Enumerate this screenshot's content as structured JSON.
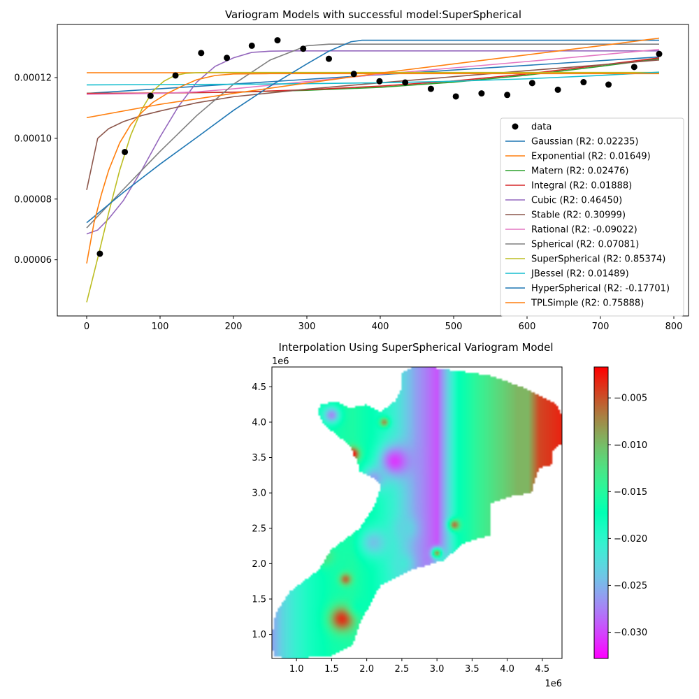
{
  "colors": {
    "data_points": "#000000",
    "tab_blue": "#1f77b4",
    "tab_orange": "#ff7f0e",
    "tab_green": "#2ca02c",
    "tab_red": "#d62728",
    "tab_purple": "#9467bd",
    "tab_brown": "#8c564b",
    "tab_pink": "#e377c2",
    "tab_gray": "#7f7f7f",
    "tab_olive": "#bcbd22",
    "tab_cyan": "#17becf",
    "colormap": "rainbow"
  },
  "chart_data": [
    {
      "type": "scatter",
      "title": "Variogram Models with successful model:SuperSpherical",
      "xlabel": "",
      "ylabel": "",
      "xlim": [
        -40,
        820
      ],
      "ylim": [
        4.15e-05,
        0.0001375
      ],
      "xticks": [
        0,
        100,
        200,
        300,
        400,
        500,
        600,
        700,
        800
      ],
      "xtick_labels": [
        "0",
        "100",
        "200",
        "300",
        "400",
        "500",
        "600",
        "700",
        "800"
      ],
      "yticks": [
        6e-05,
        8e-05,
        0.0001,
        0.00012
      ],
      "ytick_labels": [
        "0.00006",
        "0.00008",
        "0.00010",
        "0.00012"
      ],
      "grid": false,
      "legend_position": "lower-right",
      "points": {
        "name": "data",
        "x": [
          18,
          52,
          87,
          121,
          156,
          191,
          225,
          260,
          295,
          330,
          364,
          399,
          434,
          469,
          503,
          538,
          573,
          607,
          642,
          677,
          711,
          746,
          780
        ],
        "y": [
          6.2e-05,
          9.55e-05,
          0.000114,
          0.0001207,
          0.0001281,
          0.0001265,
          0.0001305,
          0.0001323,
          0.0001295,
          0.0001262,
          0.0001212,
          0.0001188,
          0.0001184,
          0.0001163,
          0.0001138,
          0.0001148,
          0.0001143,
          0.0001182,
          0.000116,
          0.0001185,
          0.0001177,
          0.0001235,
          0.0001278
        ]
      },
      "series": [
        {
          "name": "Gaussian (R2: 0.02235)",
          "color": "#1f77b4",
          "x": [
            0,
            780
          ],
          "y": [
            0.0001148,
            0.0001268
          ]
        },
        {
          "name": "Exponential (R2: 0.01649)",
          "color": "#ff7f0e",
          "x": [
            0,
            780
          ],
          "y": [
            0.0001216,
            0.0001216
          ]
        },
        {
          "name": "Matern (R2: 0.02476)",
          "color": "#2ca02c",
          "x": [
            0,
            100,
            200,
            300,
            400,
            500,
            600,
            700,
            780
          ],
          "y": [
            0.0001148,
            0.0001149,
            0.0001152,
            0.0001158,
            0.0001168,
            0.0001185,
            0.0001208,
            0.0001237,
            0.0001262
          ]
        },
        {
          "name": "Integral (R2: 0.01888)",
          "color": "#d62728",
          "x": [
            0,
            100,
            200,
            300,
            400,
            500,
            600,
            700,
            780
          ],
          "y": [
            0.0001148,
            0.0001149,
            0.0001152,
            0.000116,
            0.0001172,
            0.0001189,
            0.0001212,
            0.0001241,
            0.0001265
          ]
        },
        {
          "name": "Cubic (R2: 0.46450)",
          "color": "#9467bd",
          "x": [
            0,
            15,
            30,
            50,
            75,
            100,
            125,
            150,
            175,
            200,
            225,
            250,
            275,
            300,
            780
          ],
          "y": [
            6.85e-05,
            6.98e-05,
            7.35e-05,
            7.95e-05,
            8.95e-05,
            0.0001005,
            0.0001105,
            0.0001185,
            0.0001237,
            0.0001265,
            0.0001283,
            0.0001287,
            0.0001288,
            0.0001288,
            0.0001288
          ]
        },
        {
          "name": "Stable (R2: 0.30999)",
          "color": "#8c564b",
          "x": [
            0,
            15,
            30,
            50,
            75,
            100,
            150,
            200,
            300,
            400,
            500,
            600,
            700,
            780
          ],
          "y": [
            8.3e-05,
            0.0001,
            0.0001032,
            0.0001055,
            0.0001075,
            0.000109,
            0.0001117,
            0.0001137,
            0.0001162,
            0.0001183,
            0.0001203,
            0.0001223,
            0.0001242,
            0.0001258
          ]
        },
        {
          "name": "Rational (R2: -0.09022)",
          "color": "#e377c2",
          "x": [
            0,
            100,
            150,
            200,
            250,
            300,
            350,
            400,
            500,
            600,
            700,
            780
          ],
          "y": [
            0.0001145,
            0.0001148,
            0.0001153,
            0.0001163,
            0.0001175,
            0.0001187,
            0.0001199,
            0.0001211,
            0.0001232,
            0.0001253,
            0.0001275,
            0.0001293
          ]
        },
        {
          "name": "Spherical (R2: 0.07081)",
          "color": "#7f7f7f",
          "x": [
            0,
            50,
            100,
            150,
            200,
            250,
            300,
            330,
            780
          ],
          "y": [
            7.05e-05,
            8.32e-05,
            9.57e-05,
            0.0001075,
            0.0001178,
            0.0001258,
            0.0001305,
            0.000131,
            0.000131
          ]
        },
        {
          "name": "SuperSpherical (R2: 0.85374)",
          "color": "#bcbd22",
          "x": [
            0,
            15,
            30,
            45,
            60,
            75,
            90,
            105,
            120,
            135,
            150,
            165,
            180,
            780
          ],
          "y": [
            4.6e-05,
            6.05e-05,
            7.55e-05,
            8.95e-05,
            0.000101,
            0.0001095,
            0.0001155,
            0.0001188,
            0.0001207,
            0.0001214,
            0.0001216,
            0.0001217,
            0.0001217,
            0.0001217
          ]
        },
        {
          "name": "JBessel (R2: 0.01489)",
          "color": "#17becf",
          "x": [
            0,
            100,
            200,
            300,
            400,
            500,
            600,
            700,
            780
          ],
          "y": [
            0.0001176,
            0.0001177,
            0.0001178,
            0.000118,
            0.0001183,
            0.0001188,
            0.0001196,
            0.0001207,
            0.0001218
          ]
        },
        {
          "name": "HyperSpherical (R2: -0.17701)",
          "color": "#1f77b4",
          "x": [
            0,
            50,
            100,
            150,
            200,
            250,
            300,
            330,
            360,
            375,
            780
          ],
          "y": [
            7.22e-05,
            8.22e-05,
            9.15e-05,
            0.0001003,
            0.0001092,
            0.0001172,
            0.0001245,
            0.0001287,
            0.0001318,
            0.0001323,
            0.0001323
          ]
        },
        {
          "name": "TPLSimple (R2: 0.75888)",
          "color": "#ff7f0e",
          "x": [
            0,
            10,
            20,
            30,
            45,
            60,
            75,
            90,
            110,
            130,
            150,
            175,
            200,
            250,
            300,
            350,
            400,
            450,
            500,
            550,
            600,
            650,
            700,
            780
          ],
          "y": [
            5.88e-05,
            7.22e-05,
            8.15e-05,
            8.95e-05,
            9.85e-05,
            0.0001045,
            0.0001085,
            0.0001118,
            0.0001148,
            0.0001172,
            0.0001193,
            0.0001207,
            0.0001212,
            0.0001213,
            0.0001213,
            0.0001213,
            0.0001213,
            0.0001213,
            0.0001213,
            0.0001213,
            0.0001213,
            0.0001213,
            0.0001213,
            0.0001213
          ]
        },
        {
          "name": "",
          "color": "#ff7f0e",
          "x": [
            0,
            100,
            200,
            300,
            400,
            500,
            600,
            700,
            780
          ],
          "y": [
            0.0001068,
            0.0001112,
            0.0001148,
            0.0001182,
            0.0001215,
            0.0001245,
            0.0001275,
            0.0001305,
            0.000133
          ]
        }
      ]
    },
    {
      "type": "heatmap",
      "title": "Interpolation Using SuperSpherical Variogram Model",
      "xlabel": "",
      "ylabel": "",
      "xlim": [
        650000,
        4780000
      ],
      "ylim": [
        660000,
        4780000
      ],
      "xticks": [
        1000000,
        1500000,
        2000000,
        2500000,
        3000000,
        3500000,
        4000000,
        4500000
      ],
      "xtick_labels": [
        "1.0",
        "1.5",
        "2.0",
        "2.5",
        "3.0",
        "3.5",
        "4.0",
        "4.5"
      ],
      "yticks": [
        1000000,
        1500000,
        2000000,
        2500000,
        3000000,
        3500000,
        4000000,
        4500000
      ],
      "ytick_labels": [
        "1.0",
        "1.5",
        "2.0",
        "2.5",
        "3.0",
        "3.5",
        "4.0",
        "4.5"
      ],
      "x_offset_label": "1e6",
      "y_offset_label": "1e6",
      "colormap": "rainbow",
      "colorbar": {
        "vmin": -0.0328,
        "vmax": -0.0017,
        "ticks": [
          -0.03,
          -0.025,
          -0.02,
          -0.015,
          -0.01,
          -0.005
        ],
        "tick_labels": [
          "−0.030",
          "−0.025",
          "−0.020",
          "−0.015",
          "−0.010",
          "−0.005"
        ]
      },
      "region_boundary": {
        "x": [
          2900000,
          3100000,
          3500000,
          3800000,
          4200000,
          4400000,
          4700000,
          4780000,
          4780000,
          4650000,
          4650000,
          4450000,
          4400000,
          4350000,
          4050000,
          3750000,
          3750000,
          3400000,
          3100000,
          2600000,
          2200000,
          1900000,
          1800000,
          1500000,
          1000000,
          700000,
          650000,
          650000,
          700000,
          900000,
          1300000,
          1500000,
          1900000,
          2100000,
          2200000,
          2100000,
          1900000,
          1850000,
          1800000,
          1780000,
          1600000,
          1400000,
          1300000,
          1350000,
          1550000,
          1750000,
          2000000,
          2200000,
          2400000,
          2500000,
          2500000,
          2650000
        ],
        "y": [
          4780000,
          4750000,
          4700000,
          4650000,
          4500000,
          4400000,
          4250000,
          4100000,
          3700000,
          3600000,
          3400000,
          3350000,
          3200000,
          3000000,
          2950000,
          2850000,
          2400000,
          2300000,
          2050000,
          1900000,
          1700000,
          1150000,
          850000,
          700000,
          660000,
          680000,
          800000,
          1000000,
          1300000,
          1600000,
          1900000,
          2200000,
          2500000,
          2800000,
          3100000,
          3200000,
          3300000,
          3500000,
          3550000,
          3650000,
          3800000,
          3950000,
          4150000,
          4250000,
          4300000,
          4200000,
          4250000,
          4150000,
          4300000,
          4500000,
          4700000,
          4780000
        ]
      },
      "x_bands": {
        "x": [
          650000,
          800000,
          1000000,
          1200000,
          1500000,
          1800000,
          2100000,
          2400000,
          2700000,
          3000000,
          3300000,
          3600000,
          3900000,
          4150000,
          4300000,
          4450000,
          4780000
        ],
        "values": [
          -0.026,
          -0.023,
          -0.0205,
          -0.0185,
          -0.0165,
          -0.0155,
          -0.0175,
          -0.021,
          -0.026,
          -0.0295,
          -0.0175,
          -0.014,
          -0.0115,
          -0.0095,
          -0.0095,
          -0.0045,
          -0.003
        ]
      },
      "blobs": [
        {
          "x": 1650000,
          "y": 1220000,
          "r": 230000,
          "value": -0.0035
        },
        {
          "x": 1800000,
          "y": 3550000,
          "r": 120000,
          "value": -0.002
        },
        {
          "x": 2400000,
          "y": 3450000,
          "r": 280000,
          "value": -0.0305
        },
        {
          "x": 2100000,
          "y": 3200000,
          "r": 220000,
          "value": -0.026
        },
        {
          "x": 2100000,
          "y": 2300000,
          "r": 260000,
          "value": -0.024
        },
        {
          "x": 2550000,
          "y": 2500000,
          "r": 200000,
          "value": -0.023
        },
        {
          "x": 1700000,
          "y": 1780000,
          "r": 110000,
          "value": -0.006
        },
        {
          "x": 1400000,
          "y": 2100000,
          "r": 180000,
          "value": -0.0125
        },
        {
          "x": 3250000,
          "y": 2550000,
          "r": 100000,
          "value": -0.0065
        },
        {
          "x": 2500000,
          "y": 2000000,
          "r": 180000,
          "value": -0.0215
        },
        {
          "x": 2250000,
          "y": 4000000,
          "r": 90000,
          "value": -0.008
        },
        {
          "x": 1500000,
          "y": 4100000,
          "r": 150000,
          "value": -0.027
        },
        {
          "x": 3100000,
          "y": 1900000,
          "r": 180000,
          "value": -0.011
        },
        {
          "x": 2900000,
          "y": 1500000,
          "r": 200000,
          "value": -0.0125
        },
        {
          "x": 3000000,
          "y": 2150000,
          "r": 90000,
          "value": -0.008
        },
        {
          "x": 1900000,
          "y": 1400000,
          "r": 180000,
          "value": -0.017
        },
        {
          "x": 2100000,
          "y": 1150000,
          "r": 150000,
          "value": -0.016
        }
      ]
    }
  ]
}
